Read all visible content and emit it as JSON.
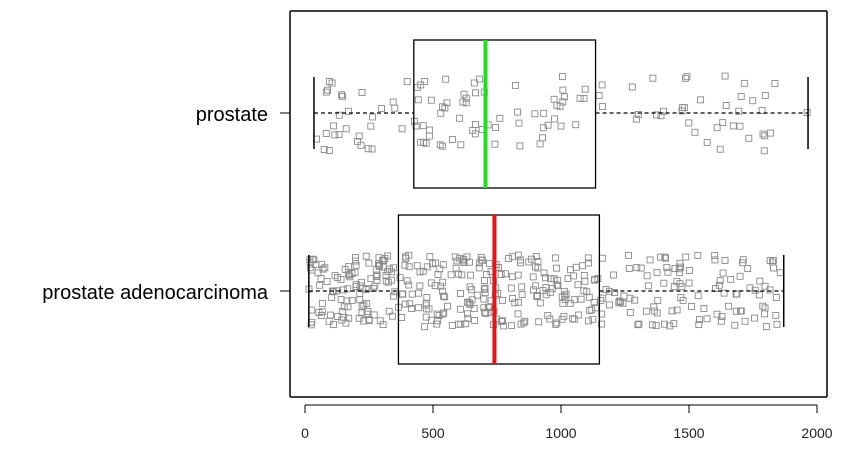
{
  "chart_data": {
    "type": "box",
    "categories": [
      "prostate",
      "prostate adenocarcinoma"
    ],
    "x_ticks": [
      0,
      500,
      1000,
      1500,
      2000
    ],
    "xlim": [
      -60,
      2040
    ],
    "grid": false,
    "boxes": [
      {
        "category": "prostate",
        "whisker_low": 35,
        "q1": 425,
        "median": 705,
        "q3": 1135,
        "whisker_high": 1965,
        "median_color": "#22dd22",
        "n_points": 130
      },
      {
        "category": "prostate adenocarcinoma",
        "whisker_low": 15,
        "q1": 365,
        "median": 740,
        "q3": 1150,
        "whisker_high": 1870,
        "median_color": "#ee1111",
        "n_points": 420
      }
    ]
  }
}
